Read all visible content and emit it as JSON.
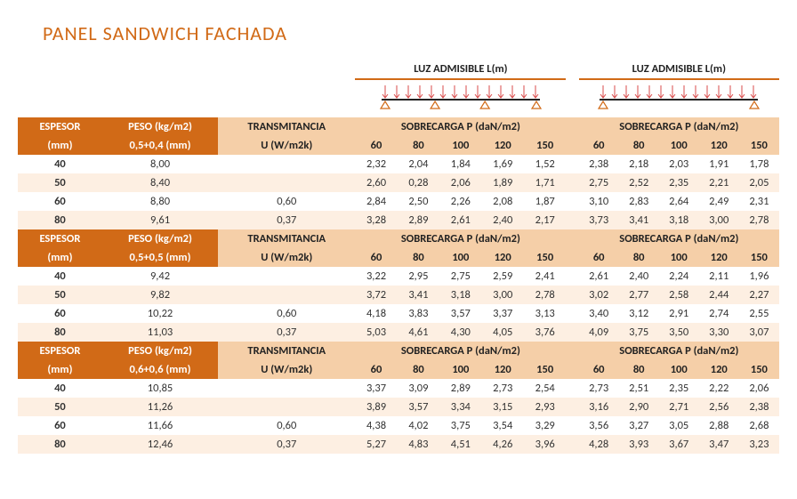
{
  "title": "PANEL SANDWICH FACHADA",
  "colors": {
    "orange": "#d16a17",
    "header_light": "#f5cfa8",
    "stripe_a": "#ffffff",
    "stripe_b": "#fdefe2",
    "text": "#333333",
    "title_color": "#d16a17"
  },
  "luz_label": "LUZ ADMISIBLE L(m)",
  "headers": {
    "espesor": "ESPESOR",
    "espesor_unit": "(mm)",
    "peso": "PESO (kg/m2)",
    "trans": "TRANSMITANCIA",
    "trans_unit": "U (W/m2k)",
    "sobre": "SOBRECARGA P (daN/m2)"
  },
  "loads": [
    "60",
    "80",
    "100",
    "120",
    "150"
  ],
  "sections": [
    {
      "peso_sub": "0,5+0,4 (mm)",
      "rows": [
        {
          "esp": "40",
          "peso": "8,00",
          "trans": "",
          "l1": [
            "2,32",
            "2,04",
            "1,84",
            "1,69",
            "1,52"
          ],
          "l2": [
            "2,38",
            "2,18",
            "2,03",
            "1,91",
            "1,78"
          ]
        },
        {
          "esp": "50",
          "peso": "8,40",
          "trans": "",
          "l1": [
            "2,60",
            "0,28",
            "2,06",
            "1,89",
            "1,71"
          ],
          "l2": [
            "2,75",
            "2,52",
            "2,35",
            "2,21",
            "2,05"
          ]
        },
        {
          "esp": "60",
          "peso": "8,80",
          "trans": "0,60",
          "l1": [
            "2,84",
            "2,50",
            "2,26",
            "2,08",
            "1,87"
          ],
          "l2": [
            "3,10",
            "2,83",
            "2,64",
            "2,49",
            "2,31"
          ]
        },
        {
          "esp": "80",
          "peso": "9,61",
          "trans": "0,37",
          "l1": [
            "3,28",
            "2,89",
            "2,61",
            "2,40",
            "2,17"
          ],
          "l2": [
            "3,73",
            "3,41",
            "3,18",
            "3,00",
            "2,78"
          ]
        }
      ]
    },
    {
      "peso_sub": "0,5+0,5 (mm)",
      "rows": [
        {
          "esp": "40",
          "peso": "9,42",
          "trans": "",
          "l1": [
            "3,22",
            "2,95",
            "2,75",
            "2,59",
            "2,41"
          ],
          "l2": [
            "2,61",
            "2,40",
            "2,24",
            "2,11",
            "1,96"
          ]
        },
        {
          "esp": "50",
          "peso": "9,82",
          "trans": "",
          "l1": [
            "3,72",
            "3,41",
            "3,18",
            "3,00",
            "2,78"
          ],
          "l2": [
            "3,02",
            "2,77",
            "2,58",
            "2,44",
            "2,27"
          ]
        },
        {
          "esp": "60",
          "peso": "10,22",
          "trans": "0,60",
          "l1": [
            "4,18",
            "3,83",
            "3,57",
            "3,37",
            "3,13"
          ],
          "l2": [
            "3,40",
            "3,12",
            "2,91",
            "2,74",
            "2,55"
          ]
        },
        {
          "esp": "80",
          "peso": "11,03",
          "trans": "0,37",
          "l1": [
            "5,03",
            "4,61",
            "4,30",
            "4,05",
            "3,76"
          ],
          "l2": [
            "4,09",
            "3,75",
            "3,50",
            "3,30",
            "3,07"
          ]
        }
      ]
    },
    {
      "peso_sub": "0,6+0,6 (mm)",
      "rows": [
        {
          "esp": "40",
          "peso": "10,85",
          "trans": "",
          "l1": [
            "3,37",
            "3,09",
            "2,89",
            "2,73",
            "2,54"
          ],
          "l2": [
            "2,73",
            "2,51",
            "2,35",
            "2,22",
            "2,06"
          ]
        },
        {
          "esp": "50",
          "peso": "11,26",
          "trans": "",
          "l1": [
            "3,89",
            "3,57",
            "3,34",
            "3,15",
            "2,93"
          ],
          "l2": [
            "3,16",
            "2,90",
            "2,71",
            "2,56",
            "2,38"
          ]
        },
        {
          "esp": "60",
          "peso": "11,66",
          "trans": "0,60",
          "l1": [
            "4,38",
            "4,02",
            "3,75",
            "3,54",
            "3,29"
          ],
          "l2": [
            "3,56",
            "3,27",
            "3,05",
            "2,88",
            "2,68"
          ]
        },
        {
          "esp": "80",
          "peso": "12,46",
          "trans": "0,37",
          "l1": [
            "5,27",
            "4,83",
            "4,51",
            "4,26",
            "3,96"
          ],
          "l2": [
            "4,28",
            "3,93",
            "3,67",
            "3,47",
            "3,23"
          ]
        }
      ]
    }
  ]
}
